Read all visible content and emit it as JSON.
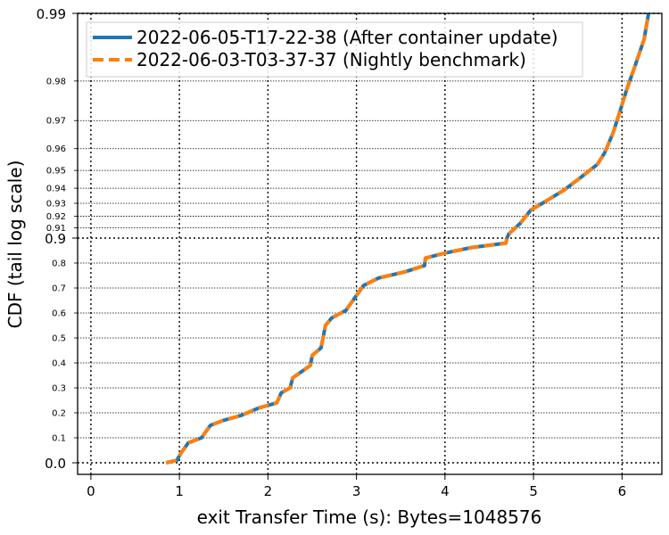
{
  "chart_data": {
    "type": "line",
    "xlabel": "exit Transfer Time (s): Bytes=1048576",
    "ylabel": "CDF (tail log scale)",
    "xlim": [
      -0.15,
      6.45
    ],
    "x_ticks": [
      "0",
      "1",
      "2",
      "3",
      "4",
      "5",
      "6"
    ],
    "y_scale": "tail-log",
    "y_major_ticks": [
      "0.0",
      "0.9",
      "0.99"
    ],
    "y_minor_ticks": [
      "0.1",
      "0.2",
      "0.3",
      "0.4",
      "0.5",
      "0.6",
      "0.7",
      "0.8",
      "0.91",
      "0.92",
      "0.93",
      "0.94",
      "0.95",
      "0.96",
      "0.97",
      "0.98"
    ],
    "grid": true,
    "legend_position": "top-left",
    "series": [
      {
        "name": "2022-06-05-T17-22-38 (After container update)",
        "color": "#1f77b4",
        "style": "solid",
        "x": [
          0.85,
          0.97,
          1.02,
          1.1,
          1.25,
          1.35,
          1.5,
          1.7,
          1.9,
          2.1,
          2.15,
          2.25,
          2.28,
          2.4,
          2.48,
          2.5,
          2.6,
          2.65,
          2.72,
          2.8,
          2.88,
          2.95,
          3.0,
          3.08,
          3.25,
          3.55,
          3.77,
          3.78,
          4.0,
          4.3,
          4.69,
          4.7,
          4.72,
          4.85,
          4.97,
          5.1,
          5.35,
          5.58,
          5.72,
          5.8,
          5.9,
          5.98,
          6.05,
          6.15,
          6.25,
          6.3
        ],
        "y": [
          0.0,
          0.01,
          0.04,
          0.08,
          0.1,
          0.15,
          0.17,
          0.19,
          0.22,
          0.24,
          0.28,
          0.3,
          0.34,
          0.37,
          0.39,
          0.43,
          0.46,
          0.55,
          0.58,
          0.595,
          0.61,
          0.645,
          0.67,
          0.71,
          0.74,
          0.765,
          0.79,
          0.82,
          0.84,
          0.862,
          0.88,
          0.9,
          0.904,
          0.914,
          0.925,
          0.93,
          0.939,
          0.948,
          0.953,
          0.958,
          0.966,
          0.973,
          0.978,
          0.983,
          0.987,
          0.99
        ]
      },
      {
        "name": "2022-06-03-T03-37-37 (Nightly benchmark)",
        "color": "#ff7f0e",
        "style": "dashed",
        "x": [
          0.85,
          0.97,
          1.02,
          1.1,
          1.25,
          1.35,
          1.5,
          1.7,
          1.9,
          2.1,
          2.15,
          2.25,
          2.28,
          2.4,
          2.48,
          2.5,
          2.6,
          2.65,
          2.72,
          2.8,
          2.88,
          2.95,
          3.0,
          3.08,
          3.25,
          3.55,
          3.77,
          3.78,
          4.0,
          4.3,
          4.69,
          4.7,
          4.72,
          4.85,
          4.97,
          5.1,
          5.35,
          5.58,
          5.72,
          5.8,
          5.9,
          5.98,
          6.05,
          6.15,
          6.25,
          6.3
        ],
        "y": [
          0.0,
          0.01,
          0.04,
          0.08,
          0.1,
          0.15,
          0.17,
          0.19,
          0.22,
          0.24,
          0.28,
          0.3,
          0.34,
          0.37,
          0.39,
          0.43,
          0.46,
          0.55,
          0.58,
          0.595,
          0.61,
          0.645,
          0.67,
          0.71,
          0.74,
          0.765,
          0.79,
          0.82,
          0.84,
          0.862,
          0.88,
          0.9,
          0.904,
          0.914,
          0.925,
          0.93,
          0.939,
          0.948,
          0.953,
          0.958,
          0.966,
          0.973,
          0.978,
          0.983,
          0.987,
          0.99
        ]
      }
    ]
  }
}
